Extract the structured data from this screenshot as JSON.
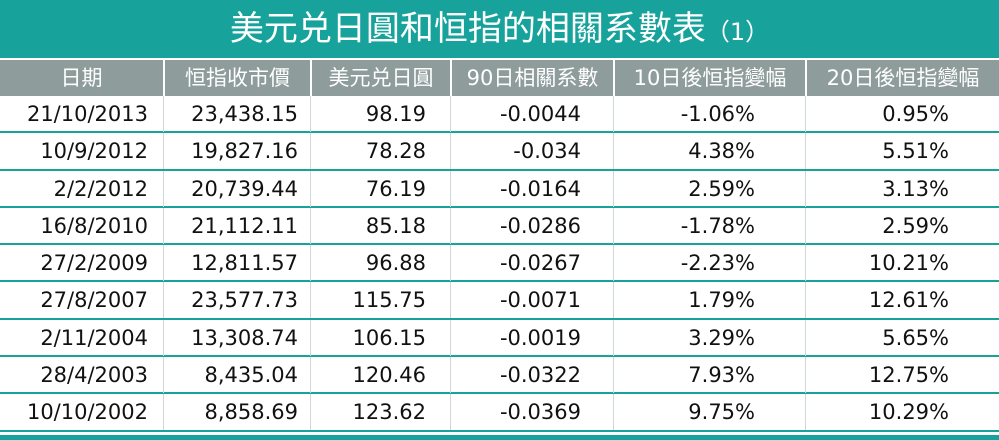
{
  "title": "美元兑日圓和恒指的相關系數表",
  "title_index": "（1）",
  "table": {
    "header": [
      "日期",
      "恒指收市價",
      "美元兑日圓",
      "90日相關系數",
      "10日後恒指變幅",
      "20日後恒指變幅"
    ],
    "rows": [
      [
        "21/10/2013",
        "23,438.15",
        "98.19",
        "-0.0044",
        "-1.06%",
        "0.95%"
      ],
      [
        "10/9/2012",
        "19,827.16",
        "78.28",
        "-0.034",
        "4.38%",
        "5.51%"
      ],
      [
        "2/2/2012",
        "20,739.44",
        "76.19",
        "-0.0164",
        "2.59%",
        "3.13%"
      ],
      [
        "16/8/2010",
        "21,112.11",
        "85.18",
        "-0.0286",
        "-1.78%",
        "2.59%"
      ],
      [
        "27/2/2009",
        "12,811.57",
        "96.88",
        "-0.0267",
        "-2.23%",
        "10.21%"
      ],
      [
        "27/8/2007",
        "23,577.73",
        "115.75",
        "-0.0071",
        "1.79%",
        "12.61%"
      ],
      [
        "2/11/2004",
        "13,308.74",
        "106.15",
        "-0.0019",
        "3.29%",
        "5.65%"
      ],
      [
        "28/4/2003",
        "8,435.04",
        "120.46",
        "-0.0322",
        "7.93%",
        "12.75%"
      ],
      [
        "10/10/2002",
        "8,858.69",
        "123.62",
        "-0.0369",
        "9.75%",
        "10.29%"
      ]
    ]
  }
}
